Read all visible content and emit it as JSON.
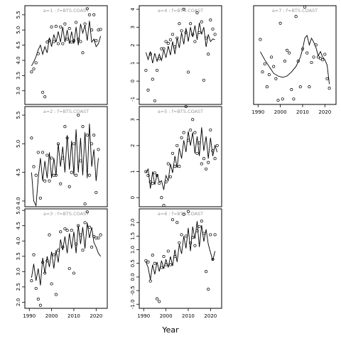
{
  "figure": {
    "xlabel": "Year"
  },
  "chart_data": [
    {
      "type": "scatter",
      "title": "a=1 : f=BTS.COAST",
      "xlim": [
        1988,
        2025
      ],
      "ylim": [
        2.55,
        5.8
      ],
      "yticks": [
        3.0,
        3.5,
        4.0,
        4.5,
        5.0,
        5.5
      ],
      "yticklabels": [
        "3.0",
        "3.5",
        "4.0",
        "4.5",
        "5.0",
        "5.5"
      ],
      "xticks": [],
      "xticklabels": [],
      "points": {
        "x": [
          1991,
          1992,
          1993,
          1994,
          1996,
          1997,
          1998,
          1999,
          2000,
          2001,
          2002,
          2003,
          2004,
          2005,
          2006,
          2007,
          2008,
          2009,
          2010,
          2011,
          2012,
          2013,
          2014,
          2015,
          2016,
          2017,
          2018,
          2019,
          2020,
          2021,
          2022
        ],
        "y": [
          3.62,
          3.72,
          3.92,
          4.22,
          2.95,
          2.8,
          4.6,
          4.65,
          5.1,
          4.62,
          5.12,
          4.55,
          5.1,
          4.55,
          5.2,
          4.7,
          5.05,
          4.6,
          4.65,
          5.25,
          4.7,
          4.62,
          4.25,
          5.2,
          5.7,
          5.5,
          5.0,
          5.5,
          4.65,
          5.0,
          5.02
        ]
      },
      "line": {
        "x": [
          1991,
          1992,
          1993,
          1994,
          1995,
          1996,
          1997,
          1998,
          1999,
          2000,
          2001,
          2002,
          2003,
          2004,
          2005,
          2006,
          2007,
          2008,
          2009,
          2010,
          2011,
          2012,
          2013,
          2014,
          2015,
          2016,
          2017,
          2018,
          2019,
          2020,
          2021,
          2022
        ],
        "y": [
          3.82,
          3.95,
          4.12,
          4.35,
          4.5,
          4.2,
          4.45,
          4.25,
          4.75,
          4.45,
          4.85,
          4.6,
          4.95,
          4.6,
          5.1,
          4.6,
          5.0,
          4.55,
          4.95,
          4.55,
          5.1,
          4.5,
          5.2,
          4.9,
          5.15,
          4.65,
          5.3,
          4.6,
          4.7,
          4.45,
          4.55,
          4.8
        ]
      }
    },
    {
      "type": "scatter",
      "title": "a=2 : f=BTS.COAST",
      "xlim": [
        1988,
        2025
      ],
      "ylim": [
        3.9,
        5.65
      ],
      "yticks": [
        4.0,
        4.5,
        5.0,
        5.5
      ],
      "yticklabels": [
        "4.0",
        "4.5",
        "5.0",
        "5.5"
      ],
      "xticks": [],
      "xticklabels": [],
      "points": {
        "x": [
          1991,
          1992,
          1993,
          1994,
          1995,
          1996,
          1997,
          1998,
          1999,
          2000,
          2001,
          2002,
          2003,
          2004,
          2005,
          2006,
          2007,
          2008,
          2009,
          2010,
          2011,
          2012,
          2013,
          2014,
          2015,
          2016,
          2017,
          2018,
          2019,
          2020,
          2021
        ],
        "y": [
          5.1,
          4.6,
          4.45,
          4.85,
          4.05,
          4.85,
          4.35,
          4.8,
          4.35,
          4.75,
          4.45,
          4.45,
          5.0,
          4.3,
          4.75,
          5.3,
          5.1,
          4.25,
          4.5,
          5.0,
          4.45,
          5.5,
          4.7,
          5.3,
          3.95,
          5.15,
          4.45,
          5.0,
          5.15,
          4.15,
          4.9
        ]
      },
      "line": {
        "x": [
          1991,
          1992,
          1993,
          1994,
          1995,
          1996,
          1997,
          1998,
          1999,
          2000,
          2001,
          2002,
          2003,
          2004,
          2005,
          2006,
          2007,
          2008,
          2009,
          2010,
          2011,
          2012,
          2013,
          2014,
          2015,
          2016,
          2017,
          2018,
          2019,
          2020,
          2021
        ],
        "y": [
          4.5,
          4.0,
          3.92,
          4.4,
          4.75,
          4.35,
          4.7,
          4.4,
          4.85,
          4.4,
          4.75,
          4.45,
          5.0,
          4.6,
          4.95,
          4.5,
          5.15,
          4.55,
          5.05,
          4.45,
          5.25,
          4.5,
          5.1,
          4.45,
          5.2,
          4.4,
          5.35,
          4.6,
          4.9,
          4.35,
          4.75
        ]
      }
    },
    {
      "type": "scatter",
      "title": "a=3 : f=BTS.COAST",
      "xlim": [
        1988,
        2025
      ],
      "ylim": [
        1.8,
        5.05
      ],
      "yticks": [
        2.0,
        2.5,
        3.0,
        3.5,
        4.0,
        4.5,
        5.0
      ],
      "yticklabels": [
        "2.0",
        "2.5",
        "3.0",
        "3.5",
        "4.0",
        "4.5",
        "5.0"
      ],
      "xticks": [
        1990,
        2000,
        2010,
        2020
      ],
      "xticklabels": [
        "1990",
        "2000",
        "2010",
        "2020"
      ],
      "points": {
        "x": [
          1991,
          1992,
          1993,
          1994,
          1995,
          1996,
          1997,
          1998,
          1999,
          2000,
          2001,
          2002,
          2003,
          2004,
          2005,
          2006,
          2007,
          2008,
          2009,
          2010,
          2011,
          2012,
          2013,
          2014,
          2015,
          2016,
          2017,
          2018,
          2019,
          2020,
          2021,
          2022
        ],
        "y": [
          2.7,
          3.55,
          2.45,
          2.1,
          1.9,
          3.3,
          2.95,
          3.35,
          4.2,
          2.6,
          3.55,
          2.25,
          3.7,
          4.3,
          3.8,
          4.4,
          4.35,
          3.1,
          4.35,
          2.95,
          3.9,
          4.5,
          4.2,
          3.7,
          4.6,
          4.95,
          4.45,
          3.8,
          4.15,
          4.1,
          4.1,
          4.2
        ]
      },
      "line": {
        "x": [
          1991,
          1992,
          1993,
          1994,
          1995,
          1996,
          1997,
          1998,
          1999,
          2000,
          2001,
          2002,
          2003,
          2004,
          2005,
          2006,
          2007,
          2008,
          2009,
          2010,
          2011,
          2012,
          2013,
          2014,
          2015,
          2016,
          2017,
          2018,
          2019,
          2020,
          2021,
          2022
        ],
        "y": [
          2.8,
          3.25,
          2.7,
          3.1,
          2.55,
          3.45,
          2.95,
          3.5,
          3.15,
          3.65,
          3.1,
          3.7,
          3.3,
          4.05,
          3.7,
          4.15,
          3.6,
          4.25,
          3.75,
          4.3,
          3.6,
          4.5,
          3.9,
          4.45,
          3.75,
          4.6,
          4.1,
          4.45,
          3.95,
          3.8,
          3.6,
          3.5
        ]
      }
    },
    {
      "type": "scatter",
      "title": "a=4 : f=BTS.COAST",
      "xlim": [
        1988,
        2025
      ],
      "ylim": [
        -1.3,
        4.2
      ],
      "yticks": [
        -1,
        0,
        1,
        2,
        3,
        4
      ],
      "yticklabels": [
        "-1",
        "0",
        "1",
        "2",
        "3",
        "4"
      ],
      "xticks": [],
      "xticklabels": [],
      "points": {
        "x": [
          1991,
          1992,
          1993,
          1994,
          1995,
          1996,
          1997,
          1998,
          1999,
          2000,
          2001,
          2002,
          2003,
          2004,
          2005,
          2006,
          2007,
          2008,
          2009,
          2010,
          2011,
          2012,
          2013,
          2014,
          2015,
          2016,
          2017,
          2018,
          2019,
          2020,
          2021,
          2022
        ],
        "y": [
          0.6,
          -0.5,
          1.5,
          0.1,
          -1.1,
          0.6,
          1.25,
          1.8,
          1.8,
          2.2,
          2.1,
          2.3,
          2.6,
          1.9,
          2.4,
          3.2,
          2.8,
          4.0,
          2.7,
          0.5,
          3.2,
          2.6,
          2.2,
          3.8,
          2.7,
          3.3,
          0.05,
          2.4,
          1.5,
          3.4,
          2.9,
          2.6
        ]
      },
      "line": {
        "x": [
          1991,
          1992,
          1993,
          1994,
          1995,
          1996,
          1997,
          1998,
          1999,
          2000,
          2001,
          2002,
          2003,
          2004,
          2005,
          2006,
          2007,
          2008,
          2009,
          2010,
          2011,
          2012,
          2013,
          2014,
          2015,
          2016,
          2017,
          2018,
          2019,
          2020,
          2021,
          2022
        ],
        "y": [
          1.6,
          1.2,
          1.65,
          1.0,
          1.55,
          1.1,
          1.5,
          1.15,
          1.75,
          1.3,
          1.95,
          1.45,
          2.2,
          1.5,
          2.4,
          1.85,
          2.7,
          2.05,
          2.95,
          2.2,
          3.0,
          2.45,
          3.1,
          2.3,
          3.25,
          2.6,
          3.0,
          1.9,
          2.6,
          2.2,
          2.35,
          2.3
        ]
      }
    },
    {
      "type": "scatter",
      "title": "a=5 : f=BTS.COAST",
      "xlim": [
        1988,
        2025
      ],
      "ylim": [
        -0.35,
        3.5
      ],
      "yticks": [
        0,
        1,
        2,
        3
      ],
      "yticklabels": [
        "0",
        "1",
        "2",
        "3"
      ],
      "xticks": [],
      "xticklabels": [],
      "points": {
        "x": [
          1991,
          1992,
          1993,
          1994,
          1995,
          1996,
          1997,
          1998,
          1999,
          2000,
          2001,
          2002,
          2003,
          2004,
          2005,
          2006,
          2007,
          2008,
          2009,
          2010,
          2011,
          2012,
          2013,
          2014,
          2015,
          2016,
          2017,
          2018,
          2019,
          2020,
          2021,
          2022,
          2023
        ],
        "y": [
          1.0,
          0.85,
          0.6,
          0.55,
          0.95,
          0.85,
          0.55,
          0.0,
          -0.3,
          0.6,
          1.3,
          0.8,
          1.7,
          1.2,
          2.0,
          1.2,
          2.3,
          2.5,
          3.5,
          2.2,
          2.6,
          3.0,
          2.5,
          1.7,
          2.1,
          1.3,
          1.5,
          1.1,
          1.35,
          2.6,
          1.8,
          1.5,
          2.0
        ]
      },
      "line": {
        "x": [
          1991,
          1992,
          1993,
          1994,
          1995,
          1996,
          1997,
          1998,
          1999,
          2000,
          2001,
          2002,
          2003,
          2004,
          2005,
          2006,
          2007,
          2008,
          2009,
          2010,
          2011,
          2012,
          2013,
          2014,
          2015,
          2016,
          2017,
          2018,
          2019,
          2020,
          2021,
          2022,
          2023
        ],
        "y": [
          0.95,
          1.1,
          0.35,
          1.0,
          0.5,
          0.9,
          0.6,
          0.65,
          0.3,
          0.85,
          0.65,
          1.3,
          0.95,
          1.6,
          1.15,
          1.9,
          1.5,
          2.2,
          1.75,
          2.55,
          2.0,
          2.5,
          1.7,
          2.35,
          1.6,
          2.7,
          1.8,
          2.35,
          1.5,
          2.3,
          1.6,
          2.0,
          1.75
        ]
      }
    },
    {
      "type": "scatter",
      "title": "a=6 : f=BTS.COAST",
      "xlim": [
        1988,
        2025
      ],
      "ylim": [
        -1.15,
        2.5
      ],
      "yticks": [
        -1.0,
        -0.5,
        0.0,
        0.5,
        1.0,
        1.5,
        2.0
      ],
      "yticklabels": [
        "-1.0",
        "-0.5",
        "0.0",
        "0.5",
        "1.0",
        "1.5",
        "2.0"
      ],
      "xticks": [
        1990,
        2000,
        2010,
        2020
      ],
      "xticklabels": [
        "1990",
        "2000",
        "2010",
        "2020"
      ],
      "points": {
        "x": [
          1991,
          1992,
          1993,
          1994,
          1995,
          1996,
          1997,
          1998,
          1999,
          2000,
          2001,
          2002,
          2003,
          2004,
          2005,
          2006,
          2007,
          2008,
          2009,
          2010,
          2011,
          2012,
          2013,
          2014,
          2015,
          2016,
          2017,
          2018,
          2019,
          2020,
          2021,
          2022
        ],
        "y": [
          0.6,
          0.55,
          -0.15,
          0.8,
          0.5,
          -0.8,
          -0.9,
          0.35,
          0.75,
          0.45,
          0.95,
          0.45,
          2.1,
          0.75,
          2.0,
          1.25,
          1.55,
          2.3,
          1.5,
          2.4,
          1.25,
          1.45,
          1.15,
          1.7,
          1.85,
          2.05,
          1.6,
          0.2,
          -0.45,
          1.55,
          0.65,
          1.55
        ]
      },
      "line": {
        "x": [
          1991,
          1992,
          1993,
          1994,
          1995,
          1996,
          1997,
          1998,
          1999,
          2000,
          2001,
          2002,
          2003,
          2004,
          2005,
          2006,
          2007,
          2008,
          2009,
          2010,
          2011,
          2012,
          2013,
          2014,
          2015,
          2016,
          2017,
          2018,
          2019,
          2020,
          2021,
          2022
        ],
        "y": [
          0.55,
          0.35,
          -0.1,
          0.45,
          0.1,
          0.55,
          0.2,
          0.6,
          0.3,
          0.65,
          0.35,
          0.75,
          0.4,
          1.0,
          0.55,
          1.2,
          0.85,
          1.5,
          1.05,
          1.8,
          0.95,
          1.85,
          1.4,
          2.05,
          1.1,
          1.9,
          1.3,
          1.75,
          1.2,
          0.9,
          0.6,
          0.95
        ]
      }
    },
    {
      "type": "scatter",
      "title": "a=7 : f=BTS.COAST",
      "xlim": [
        1988,
        2025
      ],
      "ylim": [
        -0.45,
        3.2
      ],
      "yticks": [],
      "yticklabels": [],
      "xticks": [
        1990,
        2000,
        2010,
        2020
      ],
      "xticklabels": [
        "1990",
        "2000",
        "2010",
        "2020"
      ],
      "points": {
        "x": [
          1991,
          1992,
          1993,
          1994,
          1995,
          1996,
          1997,
          1998,
          1999,
          2000,
          2001,
          2002,
          2003,
          2004,
          2005,
          2006,
          2007,
          2008,
          2009,
          2010,
          2011,
          2012,
          2013,
          2014,
          2015,
          2016,
          2017,
          2018,
          2019,
          2020,
          2021,
          2022
        ],
        "y": [
          1.95,
          0.75,
          1.05,
          0.2,
          0.65,
          1.3,
          0.95,
          0.5,
          -0.3,
          2.55,
          -0.25,
          1.15,
          1.55,
          1.45,
          0.1,
          -0.25,
          2.8,
          1.15,
          0.2,
          1.6,
          3.15,
          1.45,
          0.2,
          1.1,
          1.3,
          1.75,
          1.3,
          1.25,
          1.2,
          1.4,
          0.5,
          0.15
        ]
      },
      "line": {
        "x": [
          1991,
          1993,
          1995,
          1997,
          1999,
          2001,
          2003,
          2005,
          2007,
          2009,
          2010,
          2011,
          2012,
          2013,
          2014,
          2015,
          2016,
          2017,
          2018,
          2019,
          2020,
          2021,
          2022
        ],
        "y": [
          1.5,
          1.2,
          0.95,
          0.7,
          0.6,
          0.55,
          0.6,
          0.75,
          0.95,
          1.3,
          1.6,
          2.0,
          2.1,
          1.75,
          2.0,
          1.85,
          1.65,
          1.35,
          1.5,
          1.3,
          1.2,
          1.0,
          0.3
        ]
      }
    }
  ]
}
